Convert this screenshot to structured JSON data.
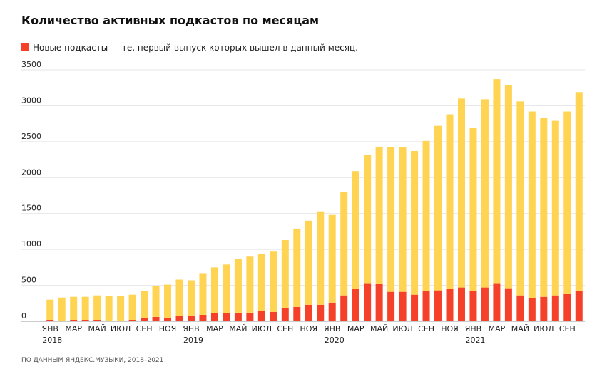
{
  "chart_data": {
    "type": "stacked-bar",
    "title": "Количество активных подкастов по месяцам",
    "source": "ПО ДАННЫМ ЯНДЕКС.МУЗЫКИ, 2018–2021",
    "categories": [
      "ЯНВ",
      null,
      "МАР",
      null,
      "МАЙ",
      null,
      "ИЮЛ",
      null,
      "СЕН",
      null,
      "НОЯ",
      null,
      "ЯНВ",
      null,
      "МАР",
      null,
      "МАЙ",
      null,
      "ИЮЛ",
      null,
      "СЕН",
      null,
      "НОЯ",
      null,
      "ЯНВ",
      null,
      "МАР",
      null,
      "МАЙ",
      null,
      "ИЮЛ",
      null,
      "СЕН",
      null,
      "НОЯ",
      null,
      "ЯНВ",
      null,
      "МАР",
      null,
      "МАЙ",
      null,
      "ИЮЛ",
      null,
      "СЕН",
      null
    ],
    "years": [
      "2018",
      null,
      null,
      null,
      null,
      null,
      null,
      null,
      null,
      null,
      null,
      null,
      "2019",
      null,
      null,
      null,
      null,
      null,
      null,
      null,
      null,
      null,
      null,
      null,
      "2020",
      null,
      null,
      null,
      null,
      null,
      null,
      null,
      null,
      null,
      null,
      null,
      "2021",
      null,
      null,
      null,
      null,
      null,
      null,
      null,
      null,
      null
    ],
    "series": [
      {
        "name": "Новые подкасты — те, первый выпуск которых вышел в данный месяц.",
        "color": "#f5412a",
        "values": [
          20,
          10,
          20,
          20,
          20,
          10,
          10,
          20,
          50,
          60,
          50,
          70,
          80,
          90,
          110,
          110,
          120,
          120,
          140,
          130,
          180,
          200,
          230,
          230,
          260,
          360,
          450,
          530,
          520,
          410,
          410,
          370,
          420,
          430,
          450,
          470,
          420,
          470,
          530,
          460,
          360,
          320,
          340,
          360,
          380,
          420
        ]
      },
      {
        "color": "#ffd452",
        "values": [
          280,
          320,
          320,
          320,
          340,
          340,
          345,
          350,
          370,
          430,
          460,
          510,
          490,
          580,
          640,
          680,
          750,
          780,
          800,
          840,
          950,
          1090,
          1170,
          1300,
          1220,
          1440,
          1640,
          1780,
          1910,
          2010,
          2010,
          2000,
          2090,
          2290,
          2430,
          2630,
          2270,
          2620,
          2840,
          2830,
          2700,
          2600,
          2490,
          2430,
          2540,
          2770
        ]
      }
    ],
    "ylim": [
      0,
      3500
    ],
    "yticks": [
      0,
      500,
      1000,
      1500,
      2000,
      2500,
      3000,
      3500
    ],
    "grid": true
  }
}
